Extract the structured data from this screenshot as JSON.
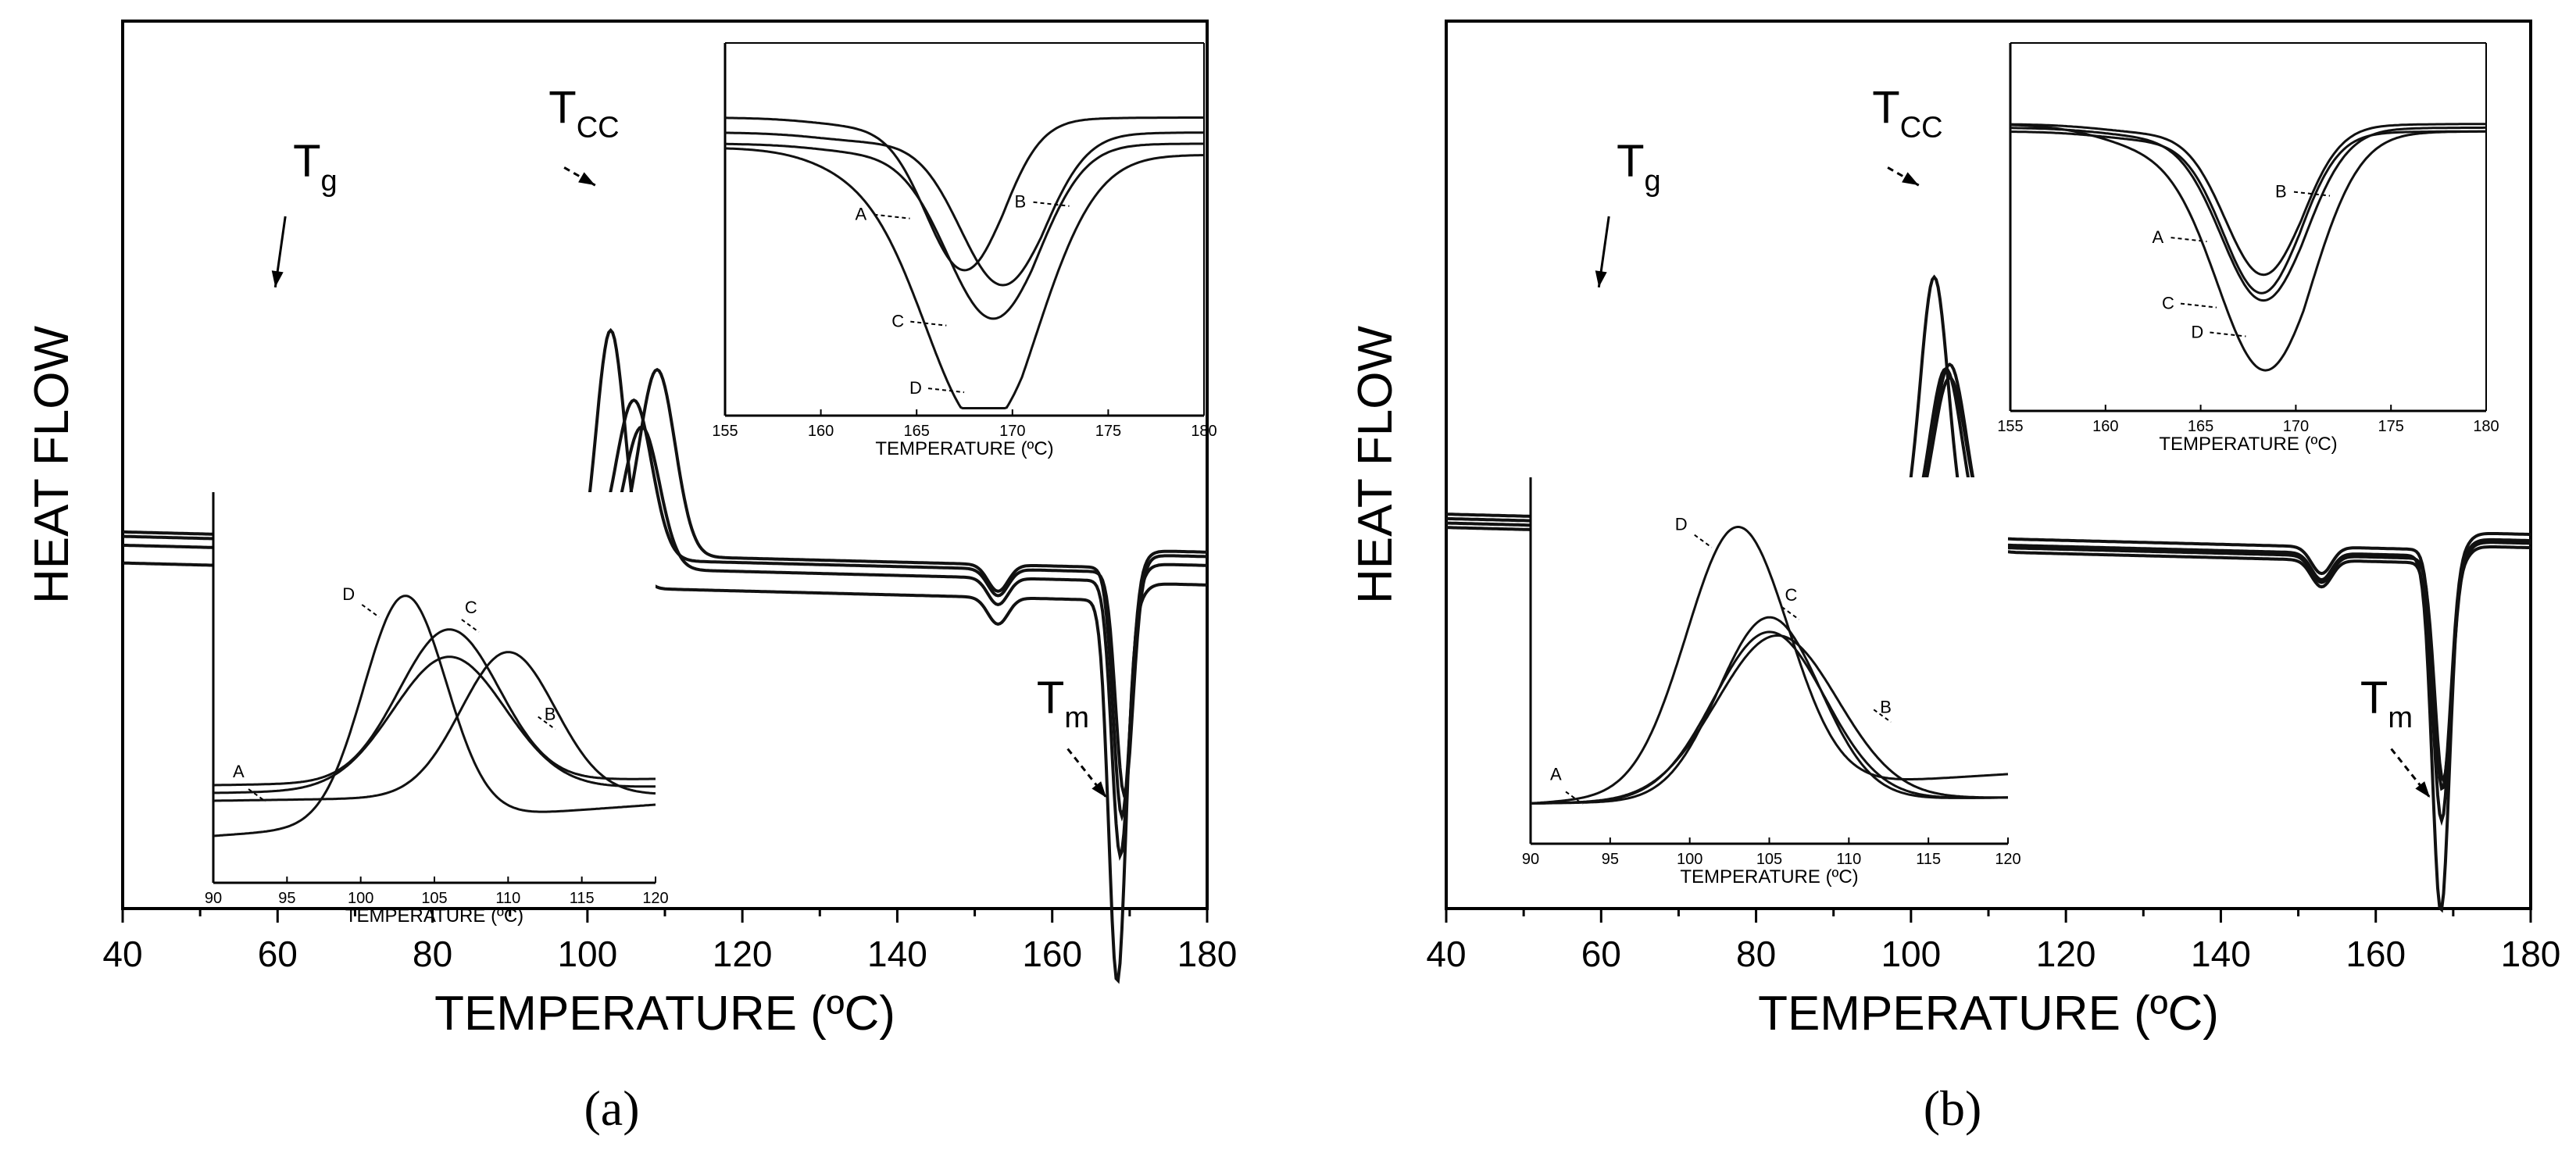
{
  "figure": {
    "captions": [
      "(a)",
      "(b)"
    ]
  },
  "chart_data": [
    {
      "panel": "a",
      "type": "line",
      "xlabel": "TEMPERATURE (ºC)",
      "ylabel": "HEAT FLOW",
      "xlim": [
        40,
        180
      ],
      "xticks": [
        "40",
        "60",
        "80",
        "100",
        "120",
        "140",
        "160",
        "180"
      ],
      "annotations": [
        {
          "main": "T",
          "sub": "g",
          "x": 60
        },
        {
          "main": "T",
          "sub": "CC",
          "x": 103
        },
        {
          "main": "T",
          "sub": "m",
          "x": 168
        }
      ],
      "series": [
        {
          "name": "A",
          "baseline": 0.58,
          "step": 0.012,
          "cc_peak": 109,
          "cc_height": 0.21,
          "cc_width": 2.3,
          "m_peak": 169.0,
          "m_depth": 0.28
        },
        {
          "name": "B",
          "baseline": 0.585,
          "step": 0.012,
          "cc_peak": 106,
          "cc_height": 0.18,
          "cc_width": 2.3,
          "m_peak": 169.3,
          "m_depth": 0.25
        },
        {
          "name": "C",
          "baseline": 0.595,
          "step": 0.012,
          "cc_peak": 107,
          "cc_height": 0.16,
          "cc_width": 2.3,
          "m_peak": 168.8,
          "m_depth": 0.31
        },
        {
          "name": "D",
          "baseline": 0.615,
          "step": 0.014,
          "cc_peak": 103,
          "cc_height": 0.29,
          "cc_width": 1.9,
          "m_peak": 168.4,
          "m_depth": 0.43
        }
      ],
      "insets": [
        {
          "region": "crystallization",
          "xlabel": "TEMPERATURE (ºC)",
          "xlim": [
            90,
            120
          ],
          "xticks": [
            "90",
            "95",
            "100",
            "105",
            "110",
            "115",
            "120"
          ],
          "series": [
            {
              "name": "A",
              "peak": 110,
              "height": 0.37,
              "width": 3.2,
              "base": 0.79,
              "label": "A"
            },
            {
              "name": "B",
              "peak": 106,
              "height": 0.34,
              "width": 3.8,
              "base": 0.77,
              "label": "B"
            },
            {
              "name": "C",
              "peak": 106,
              "height": 0.39,
              "width": 3.4,
              "base": 0.75,
              "label": "C"
            },
            {
              "name": "D",
              "peak": 103,
              "height": 0.58,
              "width": 2.8,
              "base": 0.88,
              "label": "D"
            }
          ]
        },
        {
          "region": "melting",
          "xlabel": "TEMPERATURE (ºC)",
          "xlim": [
            155,
            180
          ],
          "xticks": [
            "155",
            "160",
            "165",
            "170",
            "175",
            "180"
          ],
          "series": [
            {
              "name": "A",
              "peak": 167.5,
              "depth": 0.38,
              "width": 2.0,
              "base": 0.2,
              "label": "A"
            },
            {
              "name": "B",
              "peak": 169.5,
              "depth": 0.38,
              "width": 2.2,
              "base": 0.24,
              "label": "B"
            },
            {
              "name": "C",
              "peak": 169.0,
              "depth": 0.44,
              "width": 2.4,
              "base": 0.27,
              "label": "C"
            },
            {
              "name": "D",
              "peak": 168.5,
              "depth": 0.67,
              "width": 3.0,
              "base": 0.28,
              "label": "D"
            }
          ]
        }
      ]
    },
    {
      "panel": "b",
      "type": "line",
      "xlabel": "TEMPERATURE (ºC)",
      "ylabel": "HEAT FLOW",
      "xlim": [
        40,
        180
      ],
      "xticks": [
        "40",
        "60",
        "80",
        "100",
        "120",
        "140",
        "160",
        "180"
      ],
      "annotations": [
        {
          "main": "T",
          "sub": "g",
          "x": 60
        },
        {
          "main": "T",
          "sub": "CC",
          "x": 103
        },
        {
          "main": "T",
          "sub": "m",
          "x": 168
        }
      ],
      "series": [
        {
          "name": "A",
          "baseline": 0.56,
          "step": 0.012,
          "cc_peak": 105,
          "cc_height": 0.18,
          "cc_width": 2.1,
          "m_peak": 168.6,
          "m_depth": 0.27
        },
        {
          "name": "B",
          "baseline": 0.57,
          "step": 0.012,
          "cc_peak": 104.5,
          "cc_height": 0.2,
          "cc_width": 2.1,
          "m_peak": 168.7,
          "m_depth": 0.25
        },
        {
          "name": "C",
          "baseline": 0.575,
          "step": 0.012,
          "cc_peak": 105,
          "cc_height": 0.21,
          "cc_width": 2.2,
          "m_peak": 168.5,
          "m_depth": 0.29
        },
        {
          "name": "D",
          "baseline": 0.565,
          "step": 0.014,
          "cc_peak": 103,
          "cc_height": 0.3,
          "cc_width": 1.8,
          "m_peak": 168.4,
          "m_depth": 0.4
        }
      ],
      "insets": [
        {
          "region": "crystallization",
          "xlabel": "TEMPERATURE (ºC)",
          "xlim": [
            90,
            120
          ],
          "xticks": [
            "90",
            "95",
            "100",
            "105",
            "110",
            "115",
            "120"
          ],
          "series": [
            {
              "name": "A",
              "peak": 105,
              "height": 0.46,
              "width": 3.5,
              "base": 0.89,
              "label": "A"
            },
            {
              "name": "B",
              "peak": 105.5,
              "height": 0.45,
              "width": 3.8,
              "base": 0.89,
              "label": "B"
            },
            {
              "name": "C",
              "peak": 105,
              "height": 0.5,
              "width": 3.2,
              "base": 0.89,
              "label": "C"
            },
            {
              "name": "D",
              "peak": 103,
              "height": 0.72,
              "width": 3.2,
              "base": 0.89,
              "label": "D"
            }
          ]
        },
        {
          "region": "melting",
          "xlabel": "TEMPERATURE (ºC)",
          "xlim": [
            155,
            180
          ],
          "xticks": [
            "155",
            "160",
            "165",
            "170",
            "175",
            "180"
          ],
          "series": [
            {
              "name": "A",
              "peak": 168.2,
              "depth": 0.41,
              "width": 2.0,
              "base": 0.24,
              "label": "A"
            },
            {
              "name": "B",
              "peak": 168.3,
              "depth": 0.38,
              "width": 2.0,
              "base": 0.22,
              "label": "B"
            },
            {
              "name": "C",
              "peak": 168.3,
              "depth": 0.44,
              "width": 2.2,
              "base": 0.23,
              "label": "C"
            },
            {
              "name": "D",
              "peak": 168.4,
              "depth": 0.59,
              "width": 2.5,
              "base": 0.22,
              "label": "D"
            }
          ]
        }
      ]
    }
  ]
}
